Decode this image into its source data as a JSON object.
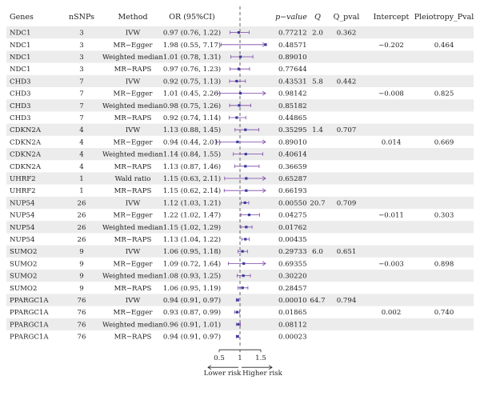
{
  "columns": {
    "genes": "Genes",
    "nsnps": "nSNPs",
    "method": "Method",
    "or": "OR (95%CI)",
    "pvalue": "p−value",
    "q": "Q",
    "q_pval": "Q_pval",
    "intercept": "Intercept",
    "pleio": "Pleiotropy_Pval"
  },
  "axis": {
    "ticks": [
      "0.5",
      "1",
      "1.5"
    ],
    "lower_label": "Lower risk",
    "higher_label": "Higher risk"
  },
  "colors": {
    "point": "#3b3b9e",
    "ci": "#7a45a8",
    "stripe": "#ececec",
    "ref_line": "#555555"
  },
  "chart_data": {
    "type": "forest",
    "reference_line": 1,
    "xlim": [
      0.5,
      1.5
    ],
    "rows": [
      {
        "gene": "NDC1",
        "nsnps": "3",
        "method": "IVW",
        "or_text": "0.97 (0.76, 1.22)",
        "or": 0.97,
        "lo": 0.76,
        "hi": 1.22,
        "pval": "0.77212",
        "q": "2.0",
        "q_pval": "0.362",
        "intercept": "",
        "pleio": ""
      },
      {
        "gene": "NDC1",
        "nsnps": "3",
        "method": "MR−Egger",
        "or_text": "1.98 (0.55, 7.17)",
        "or": 1.98,
        "lo": 0.55,
        "hi": 7.17,
        "pval": "0.48571",
        "q": "",
        "q_pval": "",
        "intercept": "−0.202",
        "pleio": "0.464"
      },
      {
        "gene": "NDC1",
        "nsnps": "3",
        "method": "Weighted median",
        "or_text": "1.01 (0.78, 1.31)",
        "or": 1.01,
        "lo": 0.78,
        "hi": 1.31,
        "pval": "0.89010",
        "q": "",
        "q_pval": "",
        "intercept": "",
        "pleio": ""
      },
      {
        "gene": "NDC1",
        "nsnps": "3",
        "method": "MR−RAPS",
        "or_text": "0.97 (0.76, 1.23)",
        "or": 0.97,
        "lo": 0.76,
        "hi": 1.23,
        "pval": "0.77644",
        "q": "",
        "q_pval": "",
        "intercept": "",
        "pleio": ""
      },
      {
        "gene": "CHD3",
        "nsnps": "7",
        "method": "IVW",
        "or_text": "0.92 (0.75, 1.13)",
        "or": 0.92,
        "lo": 0.75,
        "hi": 1.13,
        "pval": "0.43531",
        "q": "5.8",
        "q_pval": "0.442",
        "intercept": "",
        "pleio": ""
      },
      {
        "gene": "CHD3",
        "nsnps": "7",
        "method": "MR−Egger",
        "or_text": "1.01 (0.45, 2.26)",
        "or": 1.01,
        "lo": 0.45,
        "hi": 2.26,
        "pval": "0.98142",
        "q": "",
        "q_pval": "",
        "intercept": "−0.008",
        "pleio": "0.825"
      },
      {
        "gene": "CHD3",
        "nsnps": "7",
        "method": "Weighted median",
        "or_text": "0.98 (0.75, 1.26)",
        "or": 0.98,
        "lo": 0.75,
        "hi": 1.26,
        "pval": "0.85182",
        "q": "",
        "q_pval": "",
        "intercept": "",
        "pleio": ""
      },
      {
        "gene": "CHD3",
        "nsnps": "7",
        "method": "MR−RAPS",
        "or_text": "0.92 (0.74, 1.14)",
        "or": 0.92,
        "lo": 0.74,
        "hi": 1.14,
        "pval": "0.44865",
        "q": "",
        "q_pval": "",
        "intercept": "",
        "pleio": ""
      },
      {
        "gene": "CDKN2A",
        "nsnps": "4",
        "method": "IVW",
        "or_text": "1.13 (0.88, 1.45)",
        "or": 1.13,
        "lo": 0.88,
        "hi": 1.45,
        "pval": "0.35295",
        "q": "1.4",
        "q_pval": "0.707",
        "intercept": "",
        "pleio": ""
      },
      {
        "gene": "CDKN2A",
        "nsnps": "4",
        "method": "MR−Egger",
        "or_text": "0.94 (0.44, 2.01)",
        "or": 0.94,
        "lo": 0.44,
        "hi": 2.01,
        "pval": "0.89010",
        "q": "",
        "q_pval": "",
        "intercept": "0.014",
        "pleio": "0.669"
      },
      {
        "gene": "CDKN2A",
        "nsnps": "4",
        "method": "Weighted median",
        "or_text": "1.14 (0.84, 1.55)",
        "or": 1.14,
        "lo": 0.84,
        "hi": 1.55,
        "pval": "0.40614",
        "q": "",
        "q_pval": "",
        "intercept": "",
        "pleio": ""
      },
      {
        "gene": "CDKN2A",
        "nsnps": "4",
        "method": "MR−RAPS",
        "or_text": "1.13 (0.87, 1.46)",
        "or": 1.13,
        "lo": 0.87,
        "hi": 1.46,
        "pval": "0.36659",
        "q": "",
        "q_pval": "",
        "intercept": "",
        "pleio": ""
      },
      {
        "gene": "UHRF2",
        "nsnps": "1",
        "method": "Wald ratio",
        "or_text": "1.15 (0.63, 2.11)",
        "or": 1.15,
        "lo": 0.63,
        "hi": 2.11,
        "pval": "0.65287",
        "q": "",
        "q_pval": "",
        "intercept": "",
        "pleio": ""
      },
      {
        "gene": "UHRF2",
        "nsnps": "1",
        "method": "MR−RAPS",
        "or_text": "1.15 (0.62, 2.14)",
        "or": 1.15,
        "lo": 0.62,
        "hi": 2.14,
        "pval": "0.66193",
        "q": "",
        "q_pval": "",
        "intercept": "",
        "pleio": ""
      },
      {
        "gene": "NUP54",
        "nsnps": "26",
        "method": "IVW",
        "or_text": "1.12 (1.03, 1.21)",
        "or": 1.12,
        "lo": 1.03,
        "hi": 1.21,
        "pval": "0.00550",
        "q": "20.7",
        "q_pval": "0.709",
        "intercept": "",
        "pleio": ""
      },
      {
        "gene": "NUP54",
        "nsnps": "26",
        "method": "MR−Egger",
        "or_text": "1.22 (1.02, 1.47)",
        "or": 1.22,
        "lo": 1.02,
        "hi": 1.47,
        "pval": "0.04275",
        "q": "",
        "q_pval": "",
        "intercept": "−0.011",
        "pleio": "0.303"
      },
      {
        "gene": "NUP54",
        "nsnps": "26",
        "method": "Weighted median",
        "or_text": "1.15 (1.02, 1.29)",
        "or": 1.15,
        "lo": 1.02,
        "hi": 1.29,
        "pval": "0.01762",
        "q": "",
        "q_pval": "",
        "intercept": "",
        "pleio": ""
      },
      {
        "gene": "NUP54",
        "nsnps": "26",
        "method": "MR−RAPS",
        "or_text": "1.13 (1.04, 1.22)",
        "or": 1.13,
        "lo": 1.04,
        "hi": 1.22,
        "pval": "0.00435",
        "q": "",
        "q_pval": "",
        "intercept": "",
        "pleio": ""
      },
      {
        "gene": "SUMO2",
        "nsnps": "9",
        "method": "IVW",
        "or_text": "1.06 (0.95, 1.18)",
        "or": 1.06,
        "lo": 0.95,
        "hi": 1.18,
        "pval": "0.29733",
        "q": "6.0",
        "q_pval": "0.651",
        "intercept": "",
        "pleio": ""
      },
      {
        "gene": "SUMO2",
        "nsnps": "9",
        "method": "MR−Egger",
        "or_text": "1.09 (0.72, 1.64)",
        "or": 1.09,
        "lo": 0.72,
        "hi": 1.64,
        "pval": "0.69355",
        "q": "",
        "q_pval": "",
        "intercept": "−0.003",
        "pleio": "0.898"
      },
      {
        "gene": "SUMO2",
        "nsnps": "9",
        "method": "Weighted median",
        "or_text": "1.08 (0.93, 1.25)",
        "or": 1.08,
        "lo": 0.93,
        "hi": 1.25,
        "pval": "0.30220",
        "q": "",
        "q_pval": "",
        "intercept": "",
        "pleio": ""
      },
      {
        "gene": "SUMO2",
        "nsnps": "9",
        "method": "MR−RAPS",
        "or_text": "1.06 (0.95, 1.19)",
        "or": 1.06,
        "lo": 0.95,
        "hi": 1.19,
        "pval": "0.28457",
        "q": "",
        "q_pval": "",
        "intercept": "",
        "pleio": ""
      },
      {
        "gene": "PPARGC1A",
        "nsnps": "76",
        "method": "IVW",
        "or_text": "0.94 (0.91, 0.97)",
        "or": 0.94,
        "lo": 0.91,
        "hi": 0.97,
        "pval": "0.00010",
        "q": "64.7",
        "q_pval": "0.794",
        "intercept": "",
        "pleio": ""
      },
      {
        "gene": "PPARGC1A",
        "nsnps": "76",
        "method": "MR−Egger",
        "or_text": "0.93 (0.87, 0.99)",
        "or": 0.93,
        "lo": 0.87,
        "hi": 0.99,
        "pval": "0.01865",
        "q": "",
        "q_pval": "",
        "intercept": "0.002",
        "pleio": "0.740"
      },
      {
        "gene": "PPARGC1A",
        "nsnps": "76",
        "method": "Weighted median",
        "or_text": "0.96 (0.91, 1.01)",
        "or": 0.96,
        "lo": 0.91,
        "hi": 1.01,
        "pval": "0.08112",
        "q": "",
        "q_pval": "",
        "intercept": "",
        "pleio": ""
      },
      {
        "gene": "PPARGC1A",
        "nsnps": "76",
        "method": "MR−RAPS",
        "or_text": "0.94 (0.91, 0.97)",
        "or": 0.94,
        "lo": 0.91,
        "hi": 0.97,
        "pval": "0.00023",
        "q": "",
        "q_pval": "",
        "intercept": "",
        "pleio": ""
      }
    ]
  }
}
